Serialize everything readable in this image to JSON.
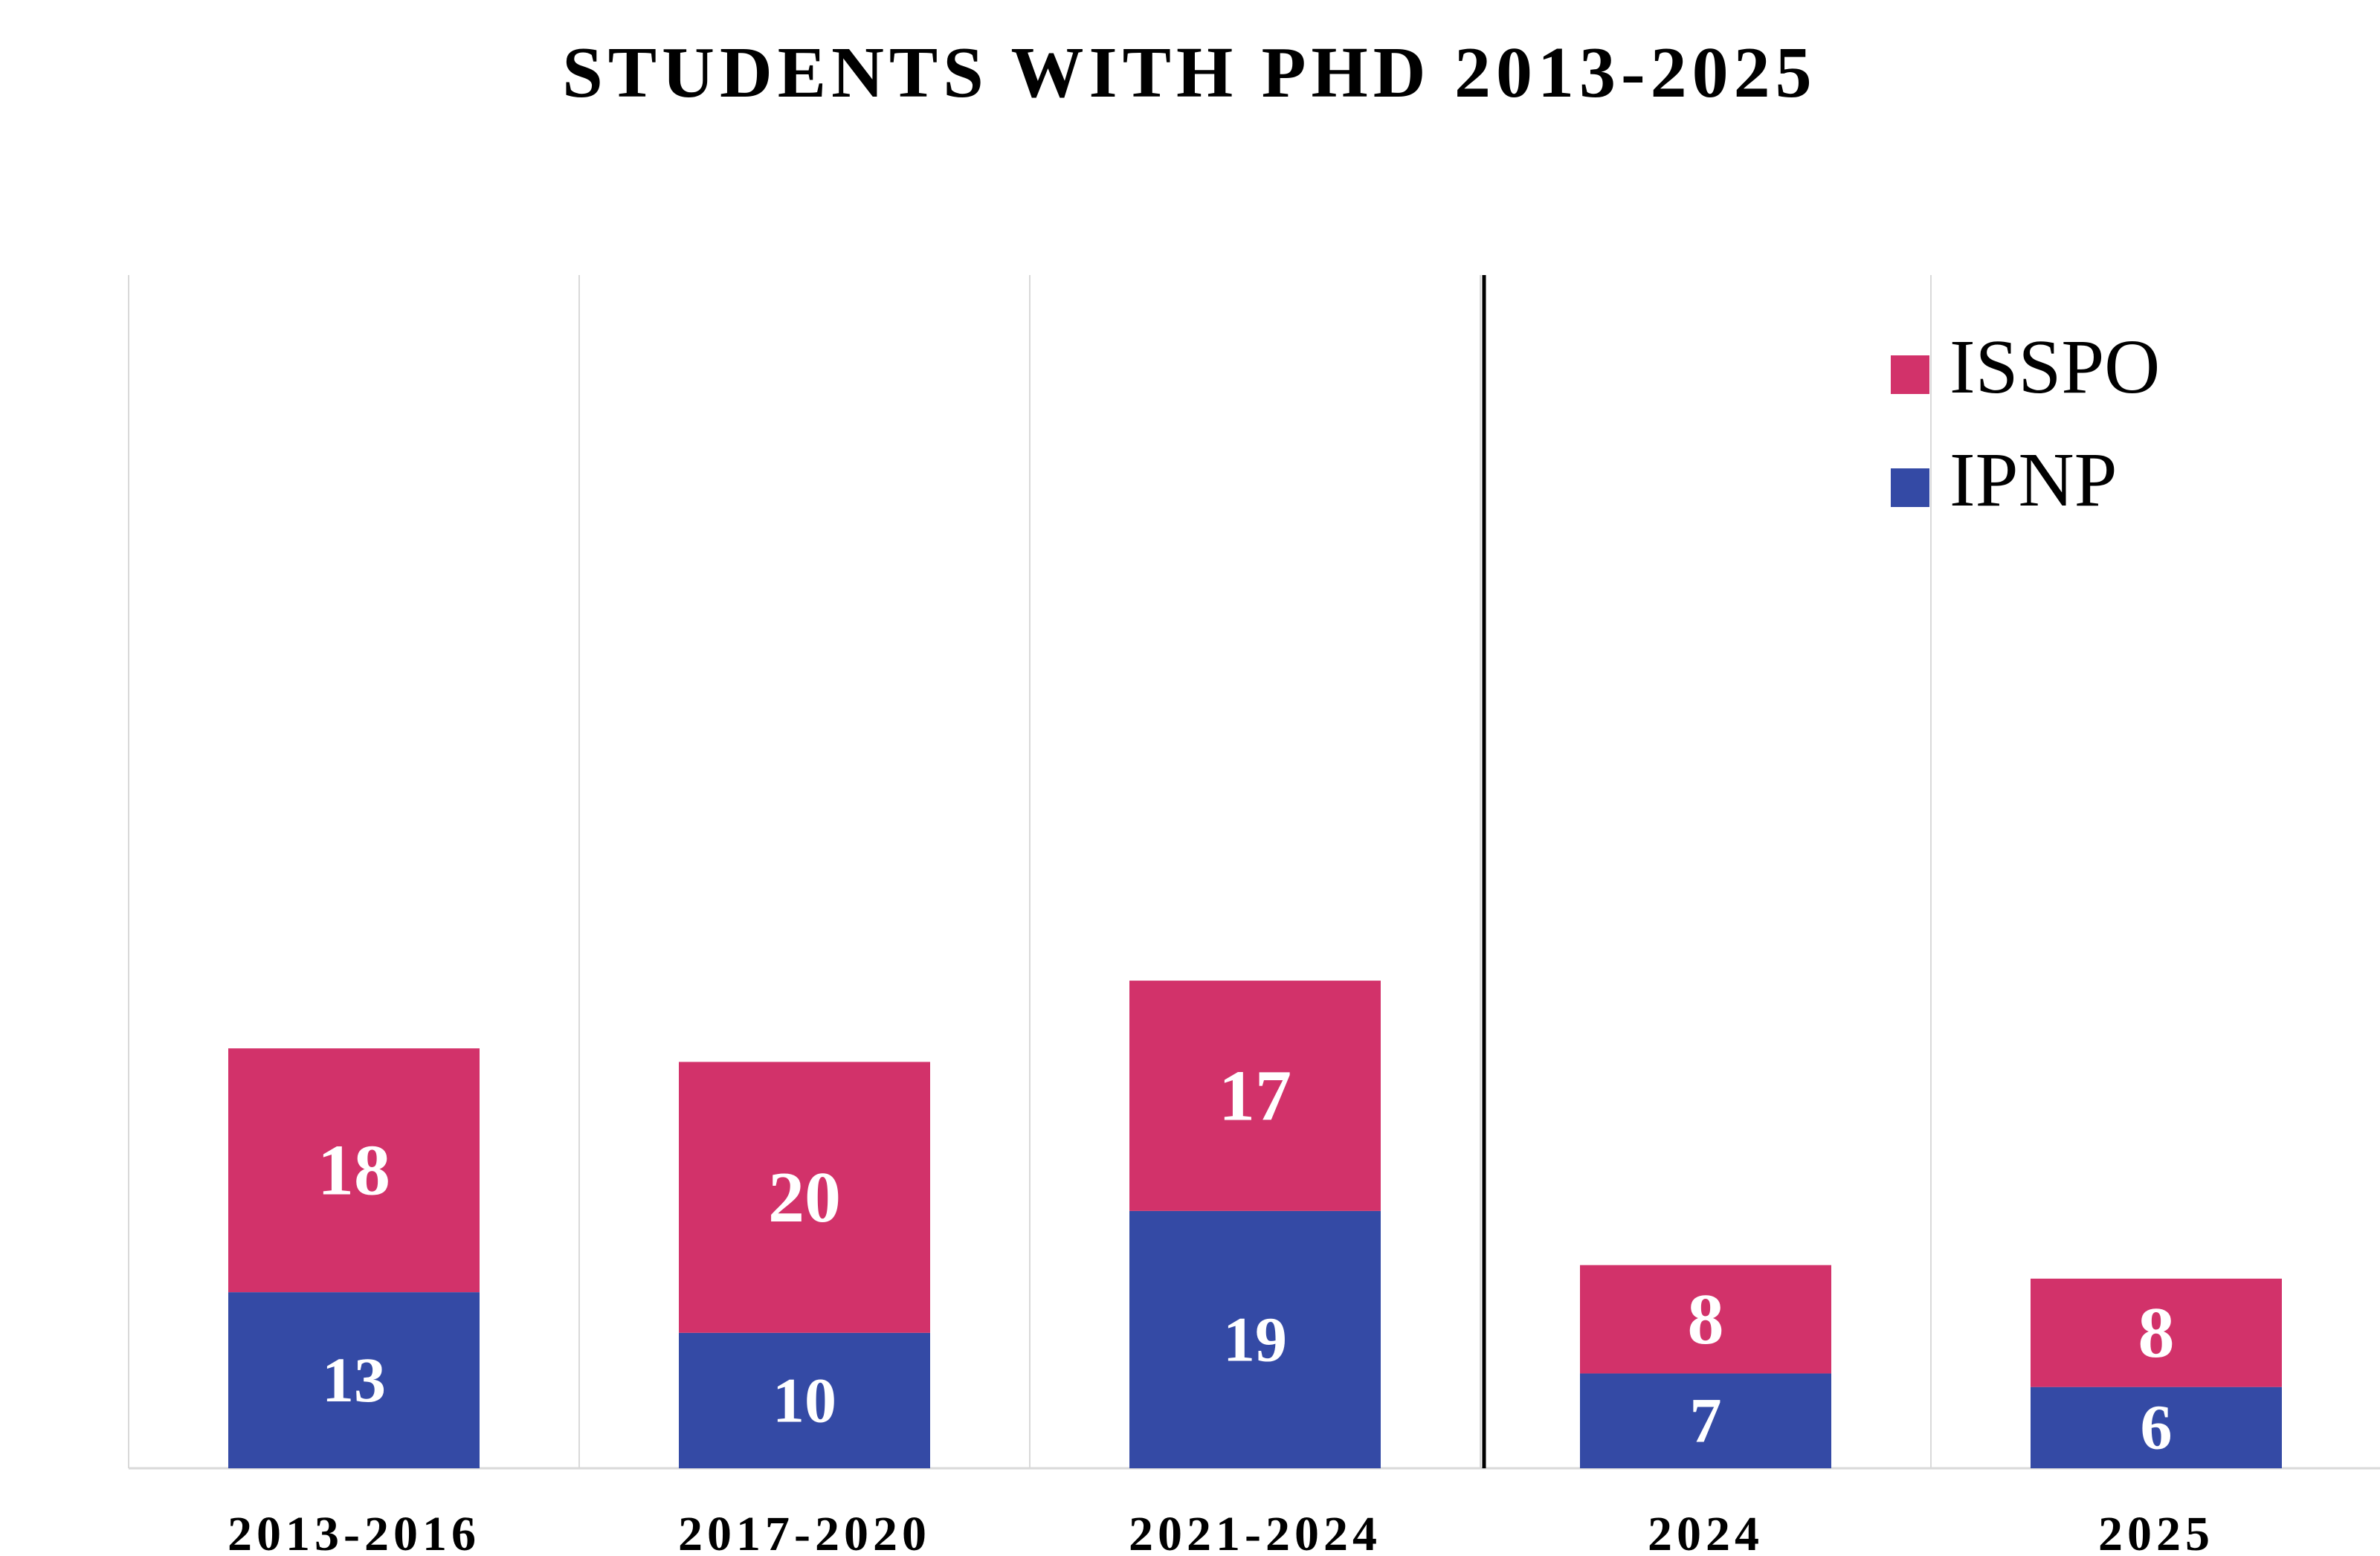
{
  "chart_data": {
    "type": "bar",
    "stacked": true,
    "title": "STUDENTS WITH PHD 2013-2025",
    "xlabel": "",
    "ylabel": "",
    "categories": [
      "2013-2016",
      "2017-2020",
      "2021-2024",
      "2024",
      "2025"
    ],
    "series": [
      {
        "name": "IPNP",
        "color": "#344aa5",
        "values": [
          13,
          10,
          19,
          7,
          6
        ]
      },
      {
        "name": "ISSPO",
        "color": "#d2326a",
        "values": [
          18,
          20,
          17,
          8,
          8
        ]
      }
    ],
    "ylim": [
      0,
      40
    ],
    "legend_position": "top-right",
    "legend_order": [
      "ISSPO",
      "IPNP"
    ],
    "grid": "vertical category separators",
    "divider_after_category": "2021-2024"
  }
}
